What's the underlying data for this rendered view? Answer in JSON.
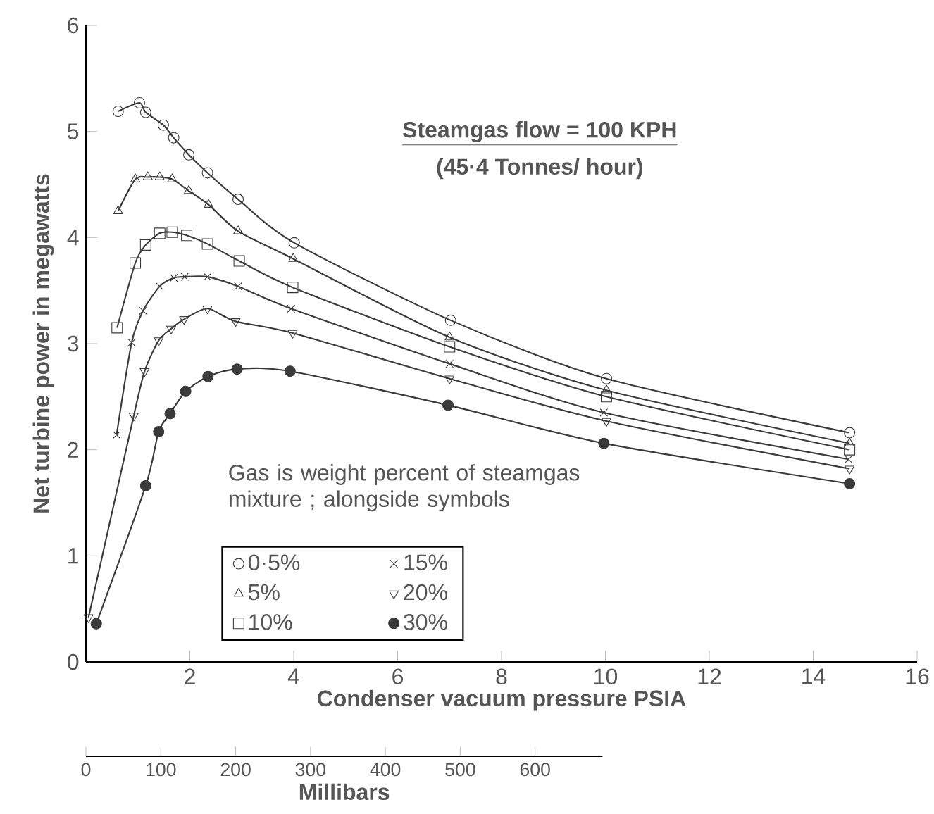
{
  "chart_data": {
    "type": "line",
    "xlabel": "Condenser vacuum pressure PSIA",
    "ylabel": "Net turbine power in megawatts",
    "x2label": "Millibars",
    "legend_title": "Gas is weight percent of steamgas mixture ; alongside symbols",
    "annotations": [
      "Steamgas flow = 100 KPH",
      "(45·4 Tonnes/ hour)"
    ],
    "xlim": [
      0,
      16
    ],
    "ylim": [
      0,
      6
    ],
    "xticks": [
      2,
      4,
      6,
      8,
      10,
      12,
      14,
      16
    ],
    "yticks": [
      0,
      1,
      2,
      3,
      4,
      5,
      6
    ],
    "x2lim": [
      0,
      690
    ],
    "x2ticks": [
      0,
      100,
      200,
      300,
      400,
      500,
      600
    ],
    "legend": "bottom left",
    "line_style": "solid",
    "grid": false,
    "series": [
      {
        "name": "0·5%",
        "color": "#3a3a3a",
        "marker": "circle",
        "x": [
          0.62,
          1.03,
          1.15,
          1.49,
          1.69,
          1.98,
          2.34,
          2.93,
          4.01,
          7.02,
          10.02,
          14.7
        ],
        "values": [
          5.19,
          5.27,
          5.18,
          5.06,
          4.94,
          4.78,
          4.61,
          4.36,
          3.95,
          3.22,
          2.67,
          2.16
        ]
      },
      {
        "name": "5%",
        "color": "#3a3a3a",
        "marker": "triangle",
        "x": [
          0.62,
          0.95,
          1.19,
          1.42,
          1.66,
          1.98,
          2.36,
          2.93,
          3.99,
          7.0,
          10.02,
          14.7
        ],
        "values": [
          4.25,
          4.55,
          4.57,
          4.57,
          4.55,
          4.44,
          4.31,
          4.06,
          3.8,
          3.06,
          2.56,
          2.06
        ]
      },
      {
        "name": "10%",
        "color": "#3a3a3a",
        "marker": "square",
        "x": [
          0.6,
          0.95,
          1.15,
          1.42,
          1.66,
          1.94,
          2.34,
          2.95,
          3.98,
          7.0,
          10.02,
          14.7
        ],
        "values": [
          3.15,
          3.76,
          3.93,
          4.04,
          4.05,
          4.02,
          3.94,
          3.78,
          3.53,
          2.97,
          2.5,
          2.0
        ]
      },
      {
        "name": "15%",
        "color": "#3a3a3a",
        "marker": "cross",
        "x": [
          0.59,
          0.88,
          1.1,
          1.42,
          1.69,
          1.9,
          2.34,
          2.93,
          3.95,
          7.0,
          9.97,
          14.68
        ],
        "values": [
          2.14,
          3.01,
          3.31,
          3.54,
          3.62,
          3.63,
          3.63,
          3.54,
          3.33,
          2.81,
          2.35,
          1.91
        ]
      },
      {
        "name": "20%",
        "color": "#3a3a3a",
        "marker": "triangle-down",
        "x": [
          0.05,
          0.92,
          1.13,
          1.4,
          1.64,
          1.89,
          2.34,
          2.88,
          3.98,
          7.0,
          10.02,
          14.7
        ],
        "values": [
          0.42,
          2.32,
          2.74,
          3.03,
          3.14,
          3.23,
          3.33,
          3.21,
          3.1,
          2.67,
          2.27,
          1.82
        ]
      },
      {
        "name": "30%",
        "color": "#3a3a3a",
        "marker": "filled-circle",
        "x": [
          0.2,
          1.15,
          1.4,
          1.62,
          1.92,
          2.35,
          2.91,
          3.93,
          6.97,
          9.97,
          14.7
        ],
        "values": [
          0.36,
          1.66,
          2.17,
          2.34,
          2.55,
          2.69,
          2.76,
          2.74,
          2.42,
          2.06,
          1.68
        ]
      }
    ]
  }
}
